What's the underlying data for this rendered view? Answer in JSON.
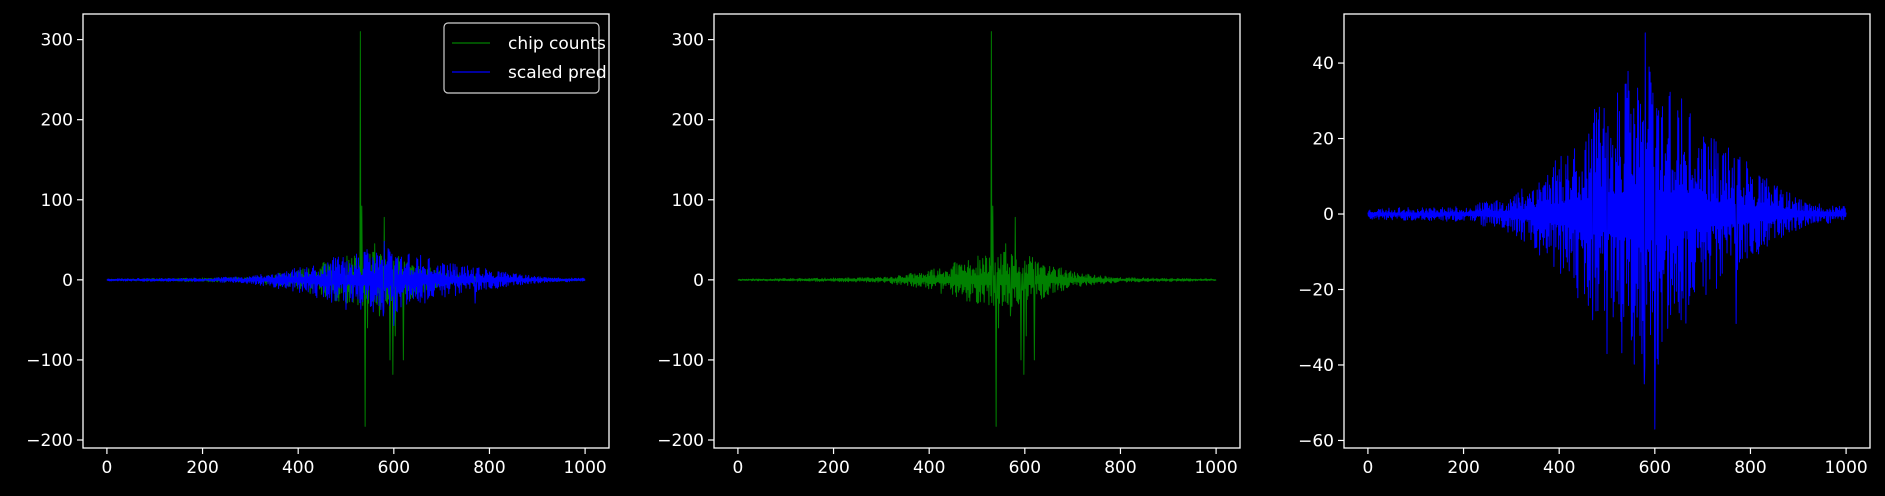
{
  "colors": {
    "background": "#000000",
    "axes": "#ffffff",
    "chip_counts": "#008000",
    "scaled_pred": "#0000ff"
  },
  "chart_data": [
    {
      "type": "line",
      "grid": false,
      "legend": "top-right",
      "xlim": [
        -50,
        1050
      ],
      "ylim": [
        -210,
        332
      ],
      "xticks": [
        0,
        200,
        400,
        600,
        800,
        1000
      ],
      "yticks": [
        -200,
        -100,
        0,
        100,
        200,
        300
      ],
      "series": [
        {
          "name": "chip counts",
          "color": "#008000",
          "seed": 11,
          "envelope": [
            [
              0,
              1
            ],
            [
              300,
              3
            ],
            [
              400,
              12
            ],
            [
              480,
              28
            ],
            [
              560,
              35
            ],
            [
              620,
              28
            ],
            [
              700,
              10
            ],
            [
              800,
              3
            ],
            [
              1000,
              1
            ]
          ],
          "spikes": [
            [
              530,
              310
            ],
            [
              533,
              92
            ],
            [
              540,
              -183
            ],
            [
              545,
              -60
            ],
            [
              580,
              78
            ],
            [
              592,
              -100
            ],
            [
              598,
              -118
            ],
            [
              603,
              -70
            ],
            [
              620,
              -100
            ],
            [
              560,
              45
            ],
            [
              570,
              -45
            ]
          ]
        },
        {
          "name": "scaled pred",
          "color": "#0000ff",
          "seed": 23,
          "envelope": [
            [
              0,
              1.5
            ],
            [
              200,
              2
            ],
            [
              300,
              5
            ],
            [
              380,
              14
            ],
            [
              450,
              24
            ],
            [
              520,
              35
            ],
            [
              580,
              45
            ],
            [
              620,
              38
            ],
            [
              700,
              22
            ],
            [
              780,
              16
            ],
            [
              850,
              8
            ],
            [
              920,
              3
            ],
            [
              1000,
              2
            ]
          ],
          "spikes": [
            [
              578,
              -45
            ],
            [
              600,
              -57
            ],
            [
              470,
              -28
            ],
            [
              500,
              -37
            ],
            [
              770,
              -29
            ],
            [
              580,
              48
            ]
          ]
        }
      ]
    },
    {
      "type": "line",
      "grid": false,
      "legend": "none",
      "xlim": [
        -50,
        1050
      ],
      "ylim": [
        -210,
        332
      ],
      "xticks": [
        0,
        200,
        400,
        600,
        800,
        1000
      ],
      "yticks": [
        -200,
        -100,
        0,
        100,
        200,
        300
      ],
      "series": [
        {
          "color": "#008000",
          "seed": 11,
          "envelope": [
            [
              0,
              1
            ],
            [
              300,
              3
            ],
            [
              400,
              12
            ],
            [
              480,
              28
            ],
            [
              560,
              35
            ],
            [
              620,
              28
            ],
            [
              700,
              10
            ],
            [
              800,
              3
            ],
            [
              1000,
              1
            ]
          ],
          "spikes": [
            [
              530,
              310
            ],
            [
              533,
              92
            ],
            [
              540,
              -183
            ],
            [
              545,
              -60
            ],
            [
              580,
              78
            ],
            [
              592,
              -100
            ],
            [
              598,
              -118
            ],
            [
              603,
              -70
            ],
            [
              620,
              -100
            ],
            [
              560,
              45
            ],
            [
              570,
              -45
            ]
          ]
        }
      ]
    },
    {
      "type": "line",
      "grid": false,
      "legend": "none",
      "xlim": [
        -50,
        1050
      ],
      "ylim": [
        -62,
        53
      ],
      "xticks": [
        0,
        200,
        400,
        600,
        800,
        1000
      ],
      "yticks": [
        -60,
        -40,
        -20,
        0,
        20,
        40
      ],
      "series": [
        {
          "color": "#0000ff",
          "seed": 23,
          "envelope": [
            [
              0,
              1.5
            ],
            [
              200,
              2
            ],
            [
              300,
              5
            ],
            [
              380,
              14
            ],
            [
              450,
              24
            ],
            [
              520,
              35
            ],
            [
              580,
              45
            ],
            [
              620,
              38
            ],
            [
              700,
              22
            ],
            [
              780,
              16
            ],
            [
              850,
              8
            ],
            [
              920,
              3
            ],
            [
              1000,
              2
            ]
          ],
          "spikes": [
            [
              578,
              -45
            ],
            [
              600,
              -57
            ],
            [
              470,
              -28
            ],
            [
              500,
              -37
            ],
            [
              770,
              -29
            ],
            [
              580,
              48
            ]
          ]
        }
      ]
    }
  ]
}
